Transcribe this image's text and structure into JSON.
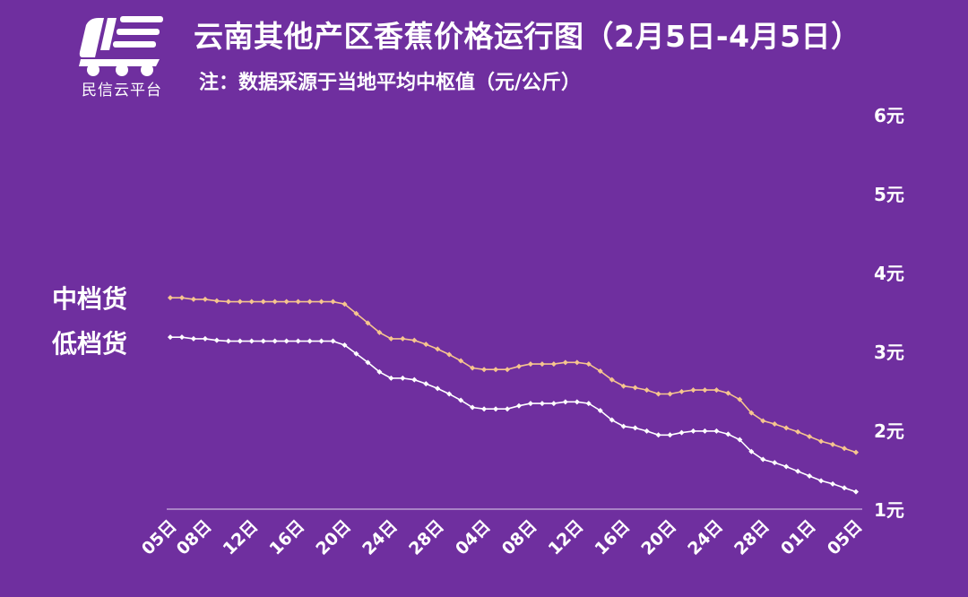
{
  "header": {
    "brand": "民信云平台",
    "title": "云南其他产区香蕉价格运行图（2月5日-4月5日）",
    "subtitle": "注：数据采源于当地平均中枢值（元/公斤）"
  },
  "colors": {
    "background": "#6f2f9f",
    "mid_series": "#f6c58e",
    "low_series": "#ffffff",
    "axis": "#c9b3dd"
  },
  "chart_data": {
    "type": "line",
    "title": "云南其他产区香蕉价格运行图（2月5日-4月5日）",
    "ylabel": "",
    "xlabel": "",
    "ylim": [
      1,
      6
    ],
    "y_ticks": [
      "1元",
      "2元",
      "3元",
      "4元",
      "5元",
      "6元"
    ],
    "y_tick_values": [
      1,
      2,
      3,
      4,
      5,
      6
    ],
    "x_tick_labels": [
      "05日",
      "08日",
      "12日",
      "16日",
      "20日",
      "24日",
      "28日",
      "04日",
      "08日",
      "12日",
      "16日",
      "20日",
      "24日",
      "28日",
      "01日",
      "05日"
    ],
    "x_tick_index": [
      0,
      3,
      7,
      11,
      15,
      19,
      23,
      27,
      31,
      35,
      39,
      43,
      47,
      51,
      55,
      59
    ],
    "grid": false,
    "legend": "left",
    "series": [
      {
        "name": "中档货",
        "values": [
          3.68,
          3.68,
          3.66,
          3.66,
          3.64,
          3.63,
          3.63,
          3.63,
          3.63,
          3.63,
          3.63,
          3.63,
          3.63,
          3.63,
          3.63,
          3.6,
          3.48,
          3.36,
          3.24,
          3.16,
          3.16,
          3.14,
          3.09,
          3.03,
          2.96,
          2.88,
          2.79,
          2.77,
          2.77,
          2.77,
          2.81,
          2.84,
          2.84,
          2.84,
          2.86,
          2.86,
          2.84,
          2.75,
          2.64,
          2.56,
          2.54,
          2.51,
          2.46,
          2.46,
          2.49,
          2.51,
          2.51,
          2.51,
          2.47,
          2.39,
          2.22,
          2.12,
          2.08,
          2.03,
          1.98,
          1.92,
          1.86,
          1.82,
          1.77,
          1.72
        ]
      },
      {
        "name": "低档货",
        "values": [
          3.18,
          3.18,
          3.16,
          3.16,
          3.14,
          3.13,
          3.13,
          3.13,
          3.13,
          3.13,
          3.13,
          3.13,
          3.13,
          3.13,
          3.13,
          3.08,
          2.97,
          2.86,
          2.74,
          2.66,
          2.66,
          2.64,
          2.59,
          2.53,
          2.46,
          2.38,
          2.29,
          2.27,
          2.27,
          2.27,
          2.31,
          2.34,
          2.34,
          2.34,
          2.36,
          2.36,
          2.34,
          2.25,
          2.13,
          2.05,
          2.03,
          1.99,
          1.94,
          1.94,
          1.97,
          1.99,
          1.99,
          1.99,
          1.95,
          1.88,
          1.73,
          1.63,
          1.59,
          1.54,
          1.48,
          1.42,
          1.36,
          1.32,
          1.27,
          1.22
        ]
      }
    ]
  }
}
